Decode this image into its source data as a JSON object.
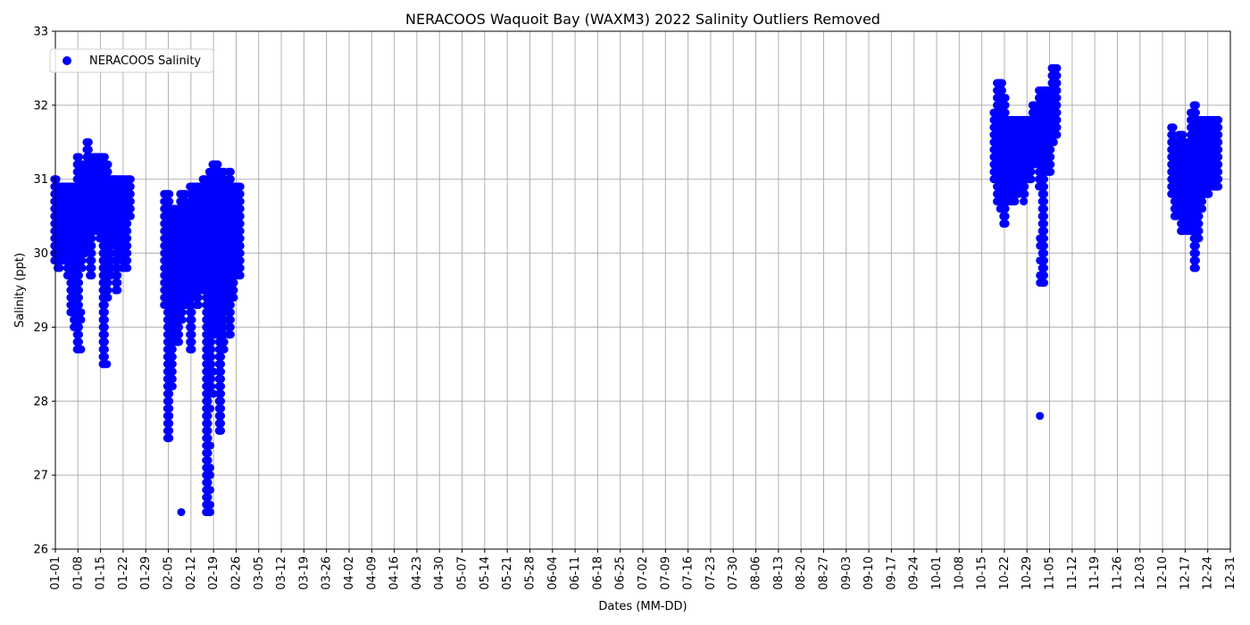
{
  "chart_data": {
    "type": "scatter",
    "title": "NERACOOS Waquoit Bay (WAXM3) 2022 Salinity Outliers Removed",
    "xlabel": "Dates (MM-DD)",
    "ylabel": "Salinity (ppt)",
    "ylim": [
      26,
      33
    ],
    "xlim": [
      "01-01",
      "12-31"
    ],
    "year": 2022,
    "grid": true,
    "legend": {
      "placement": "top-left"
    },
    "yticks": [
      "26",
      "27",
      "28",
      "29",
      "30",
      "31",
      "32",
      "33"
    ],
    "xticks": [
      "01-01",
      "01-08",
      "01-15",
      "01-22",
      "01-29",
      "02-05",
      "02-12",
      "02-19",
      "02-26",
      "03-05",
      "03-12",
      "03-19",
      "03-26",
      "04-02",
      "04-09",
      "04-16",
      "04-23",
      "04-30",
      "05-07",
      "05-14",
      "05-21",
      "05-28",
      "06-04",
      "06-11",
      "06-18",
      "06-25",
      "07-02",
      "07-09",
      "07-16",
      "07-23",
      "07-30",
      "08-06",
      "08-13",
      "08-20",
      "08-27",
      "09-03",
      "09-10",
      "09-17",
      "09-24",
      "10-01",
      "10-08",
      "10-15",
      "10-22",
      "10-29",
      "11-05",
      "11-12",
      "11-19",
      "11-26",
      "12-03",
      "12-10",
      "12-17",
      "12-24",
      "12-31"
    ],
    "series": [
      {
        "name": "NERACOOS Salinity",
        "color": "#0000ff",
        "marker": "circle",
        "ranges": [
          {
            "x": "01-01",
            "ymin": 29.9,
            "ymax": 31.0
          },
          {
            "x": "01-02",
            "ymin": 29.8,
            "ymax": 30.9
          },
          {
            "x": "01-03",
            "ymin": 29.9,
            "ymax": 30.9
          },
          {
            "x": "01-04",
            "ymin": 29.9,
            "ymax": 30.9
          },
          {
            "x": "01-05",
            "ymin": 29.7,
            "ymax": 30.9
          },
          {
            "x": "01-06",
            "ymin": 29.2,
            "ymax": 30.9
          },
          {
            "x": "01-07",
            "ymin": 29.0,
            "ymax": 30.9
          },
          {
            "x": "01-08",
            "ymin": 28.7,
            "ymax": 31.3
          },
          {
            "x": "01-09",
            "ymin": 29.8,
            "ymax": 31.2
          },
          {
            "x": "01-10",
            "ymin": 30.0,
            "ymax": 31.2
          },
          {
            "x": "01-11",
            "ymin": 30.1,
            "ymax": 31.5
          },
          {
            "x": "01-12",
            "ymin": 29.7,
            "ymax": 31.3
          },
          {
            "x": "01-13",
            "ymin": 30.3,
            "ymax": 31.3
          },
          {
            "x": "01-14",
            "ymin": 30.3,
            "ymax": 31.3
          },
          {
            "x": "01-15",
            "ymin": 30.2,
            "ymax": 31.3
          },
          {
            "x": "01-16",
            "ymin": 28.5,
            "ymax": 31.3
          },
          {
            "x": "01-17",
            "ymin": 29.4,
            "ymax": 31.2
          },
          {
            "x": "01-18",
            "ymin": 29.7,
            "ymax": 31.0
          },
          {
            "x": "01-19",
            "ymin": 30.2,
            "ymax": 31.0
          },
          {
            "x": "01-20",
            "ymin": 29.5,
            "ymax": 31.0
          },
          {
            "x": "01-21",
            "ymin": 30.0,
            "ymax": 31.0
          },
          {
            "x": "01-22",
            "ymin": 29.8,
            "ymax": 31.0
          },
          {
            "x": "01-23",
            "ymin": 29.8,
            "ymax": 31.0
          },
          {
            "x": "01-24",
            "ymin": 30.5,
            "ymax": 31.0
          },
          {
            "x": "02-04",
            "ymin": 29.3,
            "ymax": 30.8
          },
          {
            "x": "02-05",
            "ymin": 27.5,
            "ymax": 30.8
          },
          {
            "x": "02-06",
            "ymin": 28.2,
            "ymax": 30.6
          },
          {
            "x": "02-07",
            "ymin": 28.8,
            "ymax": 30.6
          },
          {
            "x": "02-08",
            "ymin": 28.8,
            "ymax": 30.6
          },
          {
            "x": "02-09",
            "ymin": 29.1,
            "ymax": 30.8
          },
          {
            "x": "02-10",
            "ymin": 29.3,
            "ymax": 30.8
          },
          {
            "x": "02-11",
            "ymin": 29.3,
            "ymax": 30.6
          },
          {
            "x": "02-12",
            "ymin": 28.7,
            "ymax": 30.9
          },
          {
            "x": "02-13",
            "ymin": 29.5,
            "ymax": 30.9
          },
          {
            "x": "02-14",
            "ymin": 29.3,
            "ymax": 30.9
          },
          {
            "x": "02-15",
            "ymin": 29.5,
            "ymax": 30.9
          },
          {
            "x": "02-16",
            "ymin": 29.5,
            "ymax": 31.0
          },
          {
            "x": "02-17",
            "ymin": 26.5,
            "ymax": 31.0
          },
          {
            "x": "02-18",
            "ymin": 28.1,
            "ymax": 31.1
          },
          {
            "x": "02-19",
            "ymin": 28.9,
            "ymax": 31.2
          },
          {
            "x": "02-20",
            "ymin": 28.9,
            "ymax": 31.2
          },
          {
            "x": "02-21",
            "ymin": 27.6,
            "ymax": 31.1
          },
          {
            "x": "02-22",
            "ymin": 28.7,
            "ymax": 31.1
          },
          {
            "x": "02-23",
            "ymin": 29.3,
            "ymax": 30.9
          },
          {
            "x": "02-24",
            "ymin": 28.9,
            "ymax": 31.1
          },
          {
            "x": "02-25",
            "ymin": 29.4,
            "ymax": 30.9
          },
          {
            "x": "02-26",
            "ymin": 29.7,
            "ymax": 30.9
          },
          {
            "x": "02-27",
            "ymin": 29.7,
            "ymax": 30.9
          },
          {
            "x": "10-19",
            "ymin": 31.0,
            "ymax": 31.9
          },
          {
            "x": "10-20",
            "ymin": 30.7,
            "ymax": 32.3
          },
          {
            "x": "10-21",
            "ymin": 30.6,
            "ymax": 32.3
          },
          {
            "x": "10-22",
            "ymin": 30.4,
            "ymax": 32.1
          },
          {
            "x": "10-23",
            "ymin": 30.7,
            "ymax": 31.8
          },
          {
            "x": "10-24",
            "ymin": 30.7,
            "ymax": 31.8
          },
          {
            "x": "10-25",
            "ymin": 30.7,
            "ymax": 31.8
          },
          {
            "x": "10-26",
            "ymin": 30.8,
            "ymax": 31.8
          },
          {
            "x": "10-27",
            "ymin": 30.9,
            "ymax": 31.8
          },
          {
            "x": "10-28",
            "ymin": 30.8,
            "ymax": 31.8
          },
          {
            "x": "10-29",
            "ymin": 31.0,
            "ymax": 31.8
          },
          {
            "x": "10-30",
            "ymin": 31.0,
            "ymax": 31.8
          },
          {
            "x": "10-31",
            "ymin": 31.2,
            "ymax": 32.0
          },
          {
            "x": "11-01",
            "ymin": 31.3,
            "ymax": 32.0
          },
          {
            "x": "11-02",
            "ymin": 30.9,
            "ymax": 32.2
          },
          {
            "x": "11-03",
            "ymin": 29.6,
            "ymax": 32.2
          },
          {
            "x": "11-04",
            "ymin": 31.1,
            "ymax": 32.2
          },
          {
            "x": "11-05",
            "ymin": 31.1,
            "ymax": 32.2
          },
          {
            "x": "11-06",
            "ymin": 31.5,
            "ymax": 32.5
          },
          {
            "x": "11-07",
            "ymin": 31.6,
            "ymax": 32.5
          },
          {
            "x": "12-13",
            "ymin": 30.8,
            "ymax": 31.7
          },
          {
            "x": "12-14",
            "ymin": 30.5,
            "ymax": 31.5
          },
          {
            "x": "12-15",
            "ymin": 30.6,
            "ymax": 31.5
          },
          {
            "x": "12-16",
            "ymin": 30.3,
            "ymax": 31.6
          },
          {
            "x": "12-17",
            "ymin": 30.5,
            "ymax": 31.5
          },
          {
            "x": "12-18",
            "ymin": 30.3,
            "ymax": 31.5
          },
          {
            "x": "12-19",
            "ymin": 30.3,
            "ymax": 31.9
          },
          {
            "x": "12-20",
            "ymin": 29.8,
            "ymax": 32.0
          },
          {
            "x": "12-21",
            "ymin": 30.2,
            "ymax": 31.8
          },
          {
            "x": "12-22",
            "ymin": 30.6,
            "ymax": 31.8
          },
          {
            "x": "12-23",
            "ymin": 30.8,
            "ymax": 31.8
          },
          {
            "x": "12-24",
            "ymin": 30.8,
            "ymax": 31.8
          },
          {
            "x": "12-25",
            "ymin": 30.9,
            "ymax": 31.8
          },
          {
            "x": "12-26",
            "ymin": 30.9,
            "ymax": 31.8
          },
          {
            "x": "12-27",
            "ymin": 30.9,
            "ymax": 31.8
          }
        ],
        "points": [
          {
            "x": "01-08",
            "y": 29.4
          },
          {
            "x": "01-09",
            "y": 28.7
          },
          {
            "x": "01-09",
            "y": 29.1
          },
          {
            "x": "01-09",
            "y": 29.2
          },
          {
            "x": "01-16",
            "y": 28.9
          },
          {
            "x": "01-16",
            "y": 28.7
          },
          {
            "x": "01-16",
            "y": 28.6
          },
          {
            "x": "01-17",
            "y": 28.5
          },
          {
            "x": "01-20",
            "y": 29.5
          },
          {
            "x": "02-05",
            "y": 27.6
          },
          {
            "x": "02-05",
            "y": 27.8
          },
          {
            "x": "02-05",
            "y": 28.0
          },
          {
            "x": "02-06",
            "y": 28.2
          },
          {
            "x": "02-09",
            "y": 26.5
          },
          {
            "x": "02-12",
            "y": 28.7
          },
          {
            "x": "02-18",
            "y": 26.5
          },
          {
            "x": "02-18",
            "y": 26.6
          },
          {
            "x": "02-18",
            "y": 26.8
          },
          {
            "x": "02-18",
            "y": 27.0
          },
          {
            "x": "02-18",
            "y": 27.1
          },
          {
            "x": "02-18",
            "y": 27.4
          },
          {
            "x": "02-18",
            "y": 27.9
          },
          {
            "x": "02-19",
            "y": 28.1
          },
          {
            "x": "02-19",
            "y": 28.4
          },
          {
            "x": "02-21",
            "y": 28.0
          },
          {
            "x": "02-21",
            "y": 28.3
          },
          {
            "x": "02-21",
            "y": 27.6
          },
          {
            "x": "02-24",
            "y": 28.9
          },
          {
            "x": "11-02",
            "y": 27.8
          },
          {
            "x": "11-02",
            "y": 29.6
          },
          {
            "x": "11-02",
            "y": 29.7
          },
          {
            "x": "11-02",
            "y": 29.9
          },
          {
            "x": "11-02",
            "y": 30.1
          },
          {
            "x": "11-02",
            "y": 30.2
          },
          {
            "x": "12-20",
            "y": 29.8
          },
          {
            "x": "12-20",
            "y": 29.9
          },
          {
            "x": "12-20",
            "y": 30.0
          },
          {
            "x": "10-22",
            "y": 30.4
          },
          {
            "x": "10-22",
            "y": 30.5
          },
          {
            "x": "10-20",
            "y": 30.7
          },
          {
            "x": "10-23",
            "y": 30.7
          },
          {
            "x": "10-28",
            "y": 30.7
          },
          {
            "x": "12-17",
            "y": 30.3
          },
          {
            "x": "12-17",
            "y": 30.4
          },
          {
            "x": "12-15",
            "y": 31.6
          },
          {
            "x": "12-19",
            "y": 31.9
          },
          {
            "x": "12-20",
            "y": 32.0
          }
        ]
      }
    ]
  }
}
